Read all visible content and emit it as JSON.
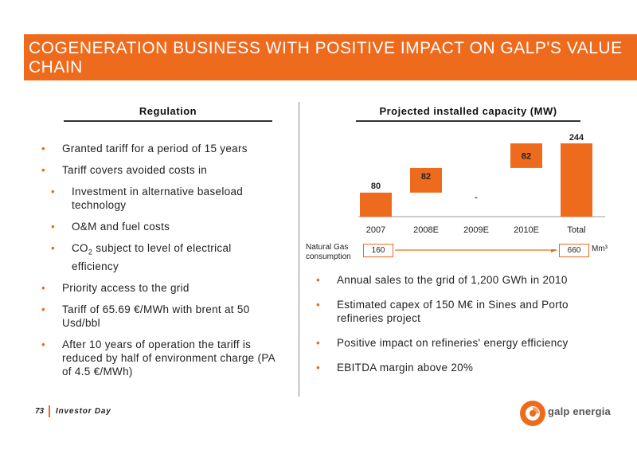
{
  "title": "COGENERATION BUSINESS WITH POSITIVE IMPACT ON GALP'S VALUE CHAIN",
  "left": {
    "heading": "Regulation",
    "bullets": [
      {
        "text": "Granted tariff for a period of 15 years",
        "level": 1
      },
      {
        "text": "Tariff covers avoided costs in",
        "level": 1
      },
      {
        "text": "Investment in alternative baseload technology",
        "level": 2
      },
      {
        "text": "O&M and fuel costs",
        "level": 2
      },
      {
        "text_a": "CO",
        "text_sub": "2",
        "text_b": " subject to level of electrical efficiency",
        "level": 2
      },
      {
        "text": "Priority access to the grid",
        "level": 1
      },
      {
        "text": "Tariff of 65.69 €/MWh with brent at 50 Usd/bbl",
        "level": 1
      },
      {
        "text": "After 10 years of operation the tariff is reduced by half of environment charge (PA of 4.5 €/MWh)",
        "level": 1
      }
    ]
  },
  "right": {
    "heading": "Projected installed capacity (MW)",
    "bullets": [
      "Annual sales to the grid of 1,200 GWh in 2010",
      "Estimated capex of 150 M€ in Sines and Porto refineries project",
      "Positive impact on refineries' energy efficiency",
      "EBITDA margin above 20%"
    ]
  },
  "chart_data": {
    "type": "bar",
    "subtype": "waterfall",
    "title": "Projected installed capacity (MW)",
    "categories": [
      "2007",
      "2008E",
      "2009E",
      "2010E",
      "Total"
    ],
    "values": [
      80,
      82,
      0,
      82,
      244
    ],
    "labels": [
      "80",
      "82",
      "-",
      "82",
      "244"
    ],
    "bar_color": "#ee6a1c"
  },
  "natural_gas": {
    "label": "Natural Gas consumption",
    "start_value": "160",
    "end_value": "660",
    "unit": "Mm³"
  },
  "footer": {
    "page": "73",
    "event": "Investor Day"
  },
  "logo": {
    "text": "galp energia"
  }
}
